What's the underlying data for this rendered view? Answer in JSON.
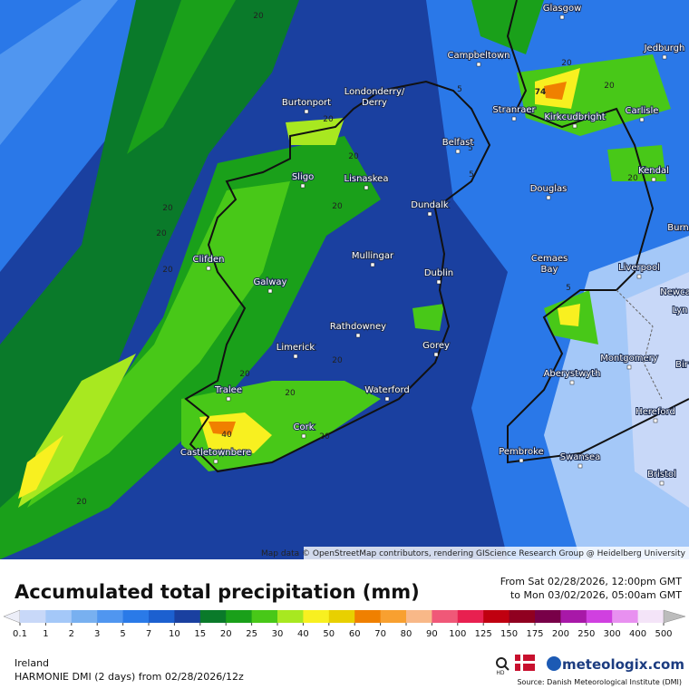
{
  "map": {
    "places": [
      "Glasgow",
      "Campbeltown",
      "Jedburgh",
      "Londonderry/",
      "Derry",
      "Burtonport",
      "Stranraer",
      "Kirkcudbright",
      "Carlisle",
      "Belfast",
      "Sligo",
      "Lisnaskea",
      "Kendal",
      "Douglas",
      "Dundalk",
      "Burn",
      "Clifden",
      "Mullingar",
      "Cemaes",
      "Bay",
      "Liverpool",
      "Dublin",
      "Galway",
      "Newca",
      "Lyn",
      "Rathdowney",
      "Gorey",
      "Limerick",
      "Montgomery",
      "Aberystwyth",
      "Bir",
      "Tralee",
      "Waterford",
      "Hereford",
      "Cork",
      "Castletownbere",
      "Pembroke",
      "Swansea",
      "Bristol"
    ],
    "contour_labels": [
      20,
      20,
      20,
      20,
      20,
      20,
      20,
      20,
      20,
      20,
      20,
      20,
      20,
      20,
      20,
      5,
      5,
      5,
      5,
      74,
      40
    ],
    "attribution": "Map data © OpenStreetMap contributors, rendering GIScience Research Group @ Heidelberg University"
  },
  "header": {
    "title": "Accumulated total precipitation (mm)",
    "from": "From Sat 02/28/2026, 12:00pm GMT",
    "to": "to Mon 03/02/2026, 05:00am GMT"
  },
  "legend": {
    "ticks": [
      0.1,
      1,
      2,
      3,
      5,
      7,
      10,
      15,
      20,
      25,
      30,
      40,
      50,
      60,
      70,
      80,
      90,
      100,
      125,
      150,
      175,
      200,
      250,
      300,
      400,
      500
    ],
    "colors": [
      "#eceef8",
      "#c8d8f8",
      "#a4c8f8",
      "#78b0f0",
      "#5096f0",
      "#2a7ae8",
      "#1c60d0",
      "#1a40a0",
      "#0a7a2a",
      "#1aa01a",
      "#48c818",
      "#a8e820",
      "#f8f020",
      "#e8d000",
      "#f08000",
      "#f8a030",
      "#f8b888",
      "#f05878",
      "#e82050",
      "#c00010",
      "#900020",
      "#780048",
      "#a818a8",
      "#d040e0",
      "#e890f0",
      "#f4e4f8",
      "#bcbcbc"
    ]
  },
  "footer": {
    "region": "Ireland",
    "model": "HARMONIE DMI (2 days)  from  02/28/2026/12z",
    "hd": "HD",
    "brand": "meteologix.com",
    "source": "Source: Danish Meteorological Institute (DMI)"
  }
}
